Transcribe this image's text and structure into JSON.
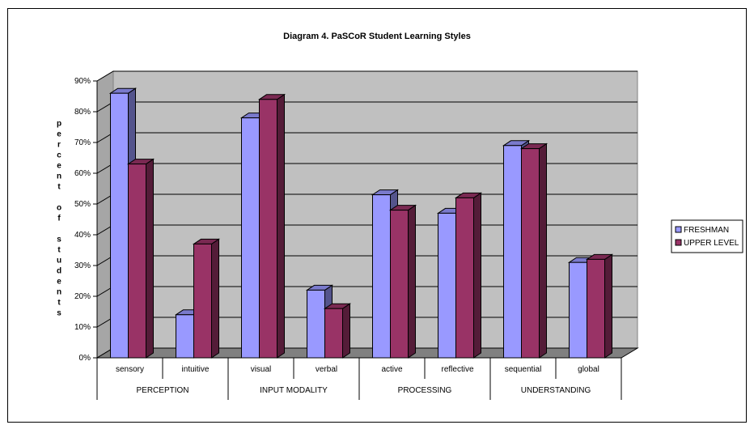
{
  "chart_data": {
    "type": "bar",
    "title": "Diagram 4. PaSCoR Student Learning Styles",
    "ylabel": "percent of students",
    "xlabel": "",
    "ylim": [
      0,
      90
    ],
    "ytick_labels": [
      "0%",
      "10%",
      "20%",
      "30%",
      "40%",
      "50%",
      "60%",
      "70%",
      "80%",
      "90%"
    ],
    "grid": true,
    "legend_position": "right",
    "categories": [
      "sensory",
      "intuitive",
      "visual",
      "verbal",
      "active",
      "reflective",
      "sequential",
      "global"
    ],
    "groups": [
      {
        "label": "PERCEPTION",
        "categories": [
          "sensory",
          "intuitive"
        ]
      },
      {
        "label": "INPUT MODALITY",
        "categories": [
          "visual",
          "verbal"
        ]
      },
      {
        "label": "PROCESSING",
        "categories": [
          "active",
          "reflective"
        ]
      },
      {
        "label": "UNDERSTANDING",
        "categories": [
          "sequential",
          "global"
        ]
      }
    ],
    "series": [
      {
        "name": "FRESHMAN",
        "color": "#9999ff",
        "values": [
          86,
          14,
          78,
          22,
          53,
          47,
          69,
          31
        ]
      },
      {
        "name": "UPPER LEVEL",
        "color": "#993366",
        "values": [
          63,
          37,
          84,
          16,
          48,
          52,
          68,
          32
        ]
      }
    ],
    "wall_color": "#c0c0c0",
    "floor_color": "#808080"
  }
}
